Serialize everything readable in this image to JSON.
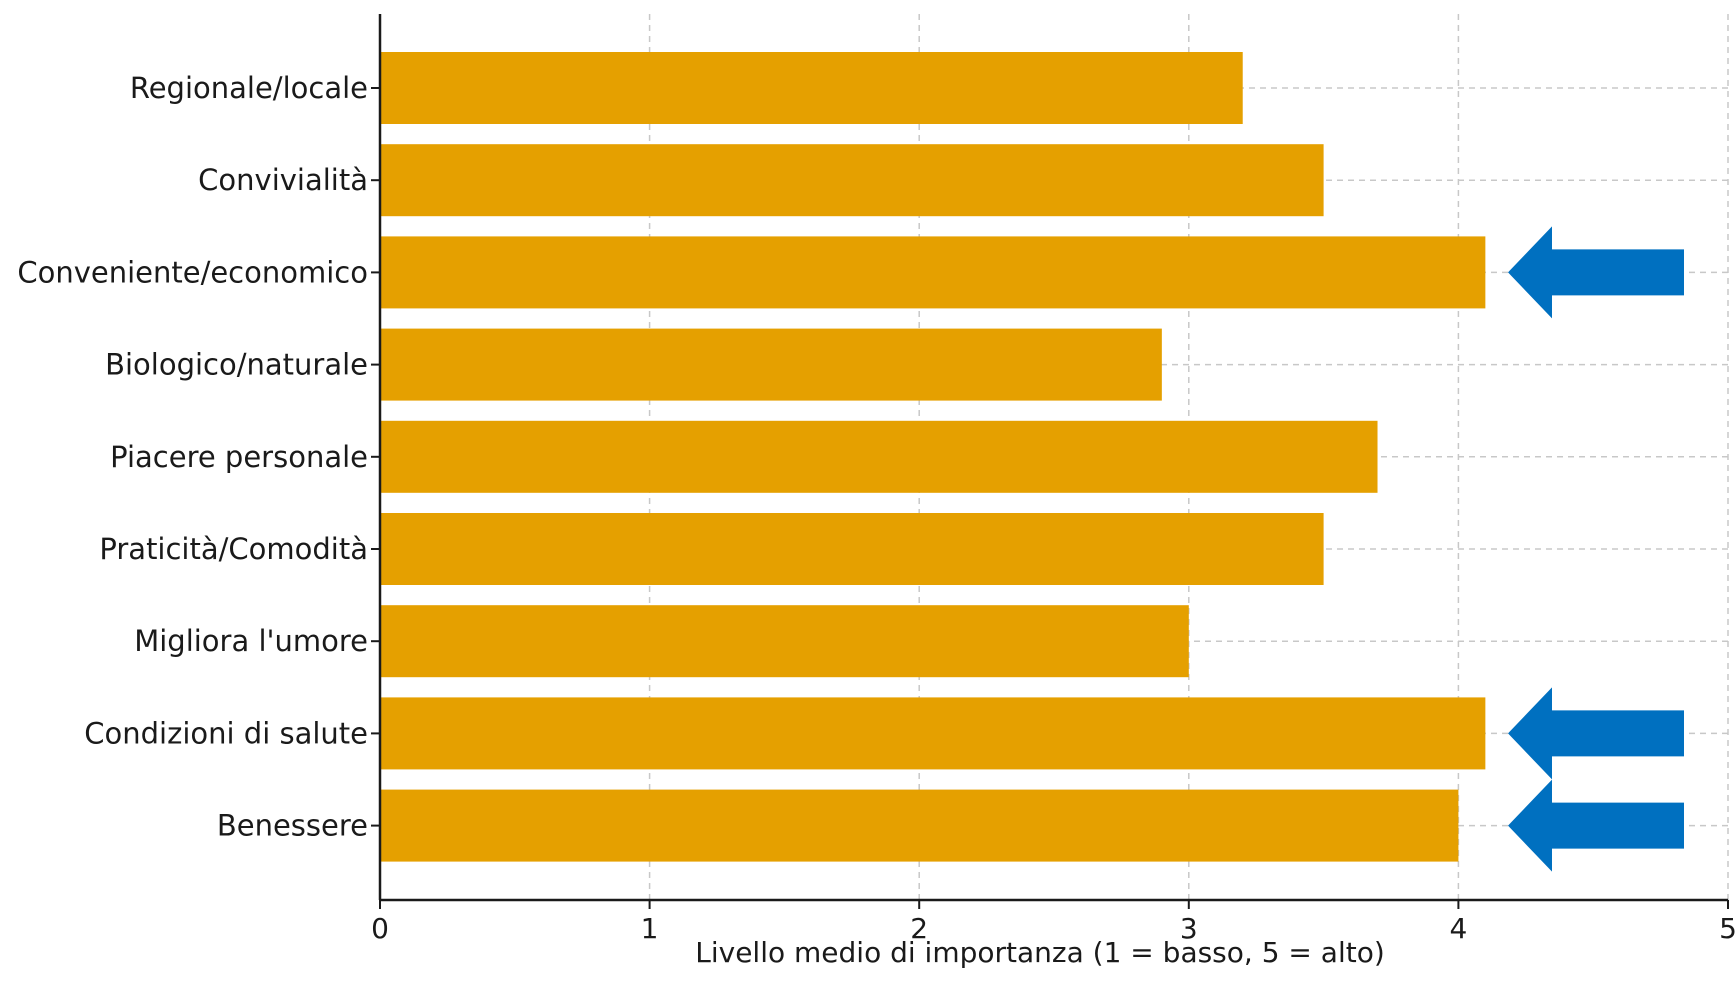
{
  "chart_data": {
    "type": "bar",
    "orientation": "horizontal",
    "title": "",
    "xlabel": "Livello medio di importanza (1 = basso, 5 = alto)",
    "ylabel": "",
    "xlim": [
      0,
      5
    ],
    "xticks": [
      0,
      1,
      2,
      3,
      4,
      5
    ],
    "grid": true,
    "categories": [
      "Regionale/locale",
      "Convivialità",
      "Conveniente/economico",
      "Biologico/naturale",
      "Piacere personale",
      "Praticità/Comodità",
      "Migliora l'umore",
      "Condizioni di salute",
      "Benessere"
    ],
    "values": [
      3.2,
      3.5,
      4.1,
      2.9,
      3.7,
      3.5,
      3.0,
      4.1,
      4.0
    ],
    "bar_color": "#E5A000",
    "highlighted_categories": [
      "Conveniente/economico",
      "Condizioni di salute",
      "Benessere"
    ],
    "highlight_marker": "left-arrow-icon",
    "highlight_color": "#0070C0"
  }
}
